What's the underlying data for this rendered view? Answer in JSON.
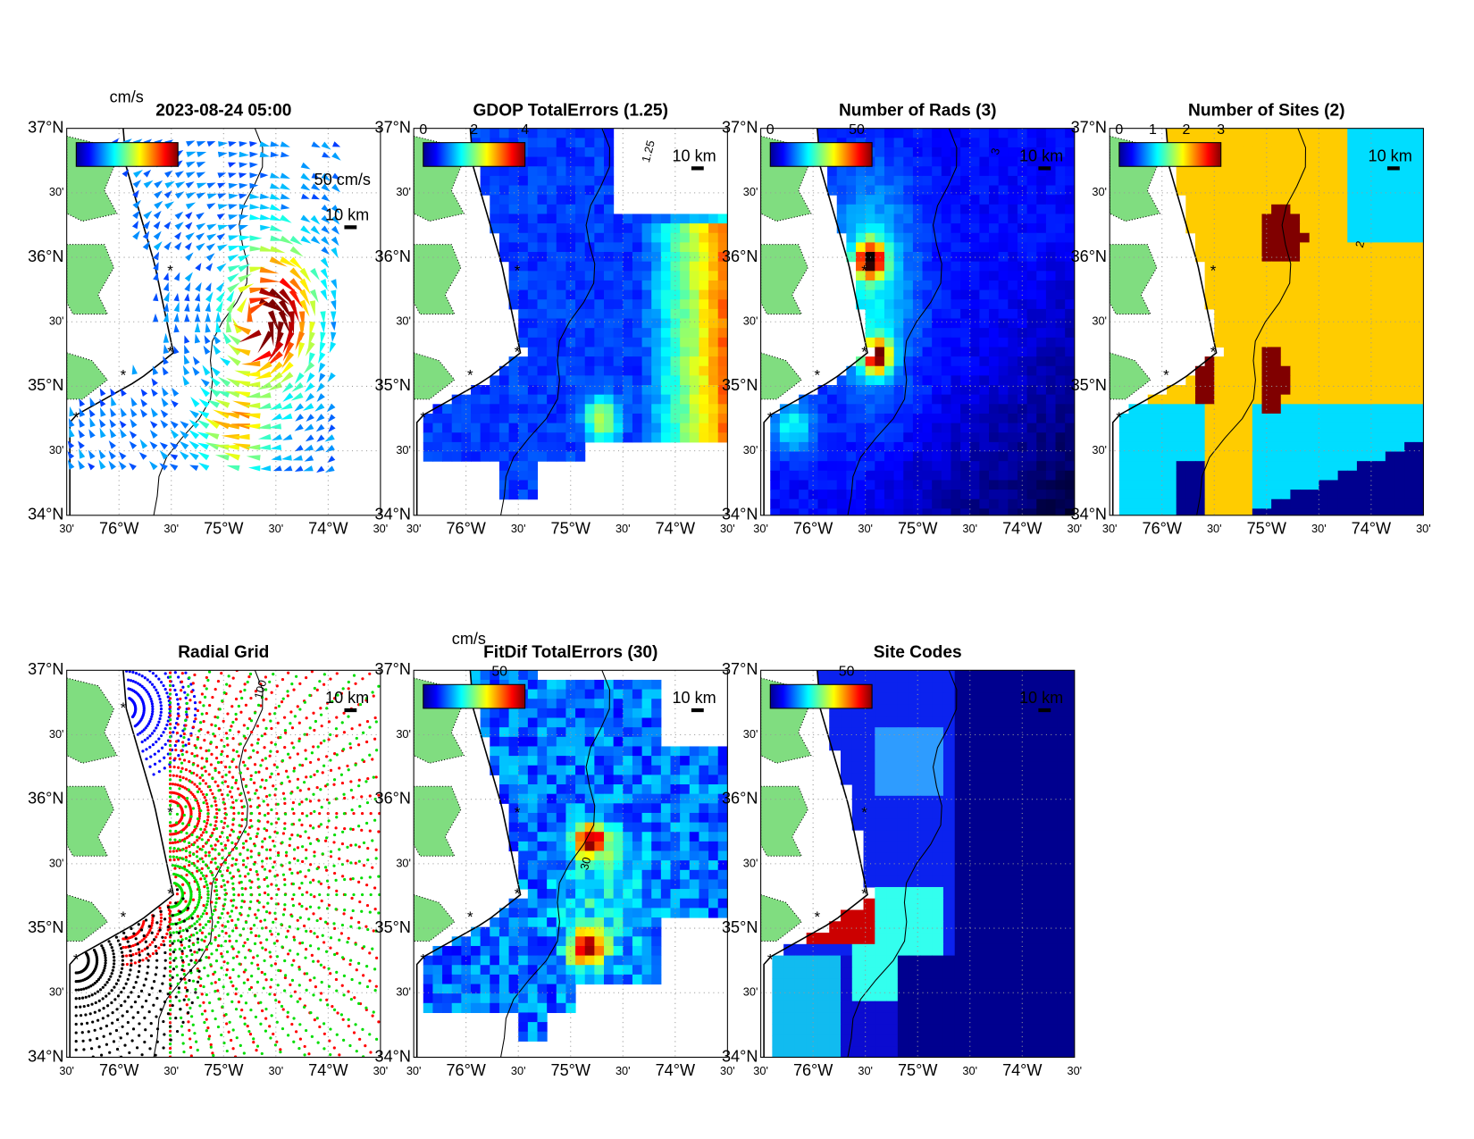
{
  "lat_labels": [
    "37°N",
    "30'",
    "36°N",
    "30'",
    "35°N",
    "30'",
    "34°N"
  ],
  "lon_labels": [
    "30'",
    "76°W",
    "30'",
    "75°W",
    "30'",
    "74°W",
    "30'"
  ],
  "panels": [
    {
      "title": "2023-08-24 05:00",
      "unit": "cm/s",
      "scale_label": "50 cm/s",
      "distance_label": "10 km"
    },
    {
      "title": "GDOP TotalErrors (1.25)",
      "colorbar_ticks": [
        "0",
        "2",
        "4"
      ],
      "distance_label": "10 km",
      "contour_label": "1.25"
    },
    {
      "title": "Number of Rads (3)",
      "colorbar_ticks": [
        "0",
        "50"
      ],
      "distance_label": "10 km",
      "contour_label": "3"
    },
    {
      "title": "Number of Sites (2)",
      "colorbar_ticks": [
        "0",
        "1",
        "2",
        "3"
      ],
      "distance_label": "10 km",
      "contour_label": "2"
    },
    {
      "title": "Radial Grid",
      "distance_label": "10 km",
      "contour_label": "100"
    },
    {
      "title": "FitDif TotalErrors (30)",
      "unit": "cm/s",
      "colorbar_ticks": [
        "50"
      ],
      "distance_label": "10 km",
      "contour_label": "30"
    },
    {
      "title": "Site Codes",
      "colorbar_ticks": [
        "50"
      ],
      "distance_label": "10 km"
    }
  ]
}
